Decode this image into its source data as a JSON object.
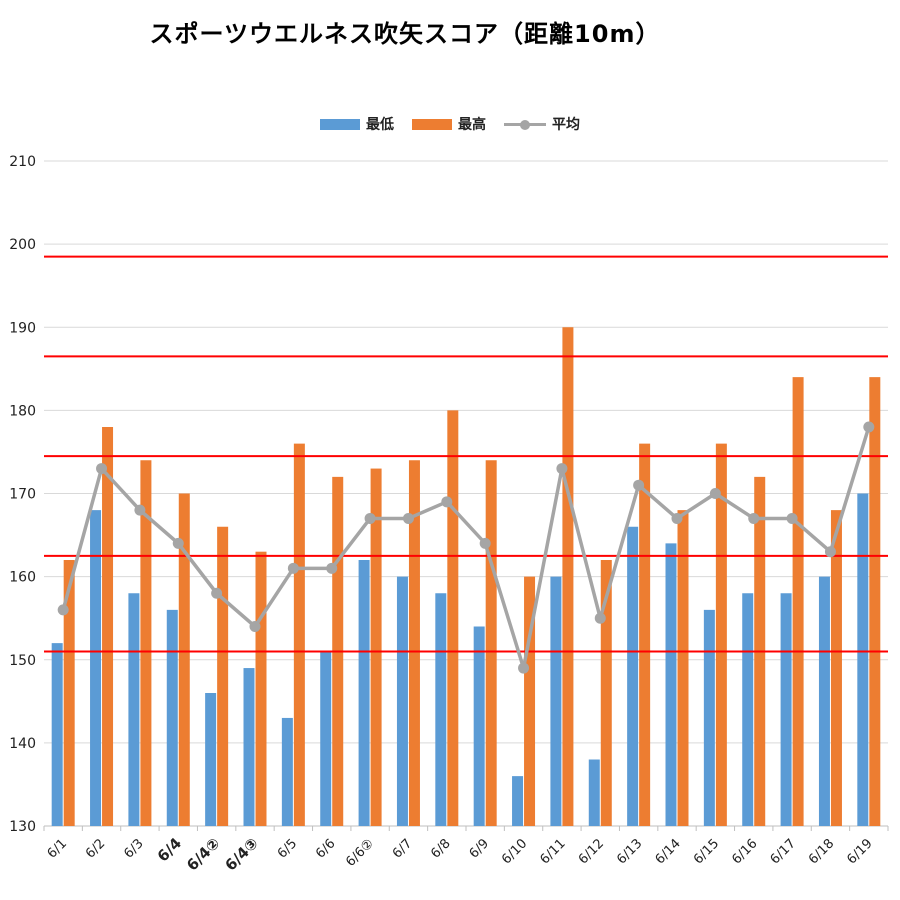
{
  "chart_data": {
    "type": "bar",
    "title": "スポーツウエルネス吹矢スコア（距離10m）",
    "categories": [
      "6/1",
      "6/2",
      "6/3",
      "6/4",
      "6/4②",
      "6/4③",
      "6/5",
      "6/6",
      "6/6②",
      "6/7",
      "6/8",
      "6/9",
      "6/10",
      "6/11",
      "6/12",
      "6/13",
      "6/14",
      "6/15",
      "6/16",
      "6/17",
      "6/18",
      "6/19"
    ],
    "bold_categories": [
      "6/4",
      "6/4②",
      "6/4③"
    ],
    "series": [
      {
        "name": "最低",
        "type": "bar",
        "color": "#5b9bd5",
        "values": [
          152,
          168,
          158,
          156,
          146,
          149,
          143,
          151,
          162,
          160,
          158,
          154,
          136,
          160,
          138,
          166,
          164,
          156,
          158,
          158,
          160,
          170
        ]
      },
      {
        "name": "最高",
        "type": "bar",
        "color": "#ed7d31",
        "values": [
          162,
          178,
          174,
          170,
          166,
          163,
          176,
          172,
          173,
          174,
          180,
          174,
          160,
          190,
          162,
          176,
          168,
          176,
          172,
          184,
          168,
          184
        ]
      },
      {
        "name": "平均",
        "type": "line",
        "color": "#a5a5a5",
        "values": [
          156,
          173,
          168,
          164,
          158,
          154,
          161,
          161,
          167,
          167,
          169,
          164,
          149,
          173,
          155,
          171,
          167,
          170,
          167,
          167,
          163,
          178
        ]
      }
    ],
    "ylim": [
      130,
      210
    ],
    "yticks": [
      130,
      140,
      150,
      160,
      170,
      180,
      190,
      200,
      210
    ],
    "reference_lines": {
      "color": "#ff0000",
      "values": [
        198.5,
        186.5,
        174.5,
        162.5,
        151
      ]
    },
    "grid": true,
    "legend": "top-center"
  }
}
